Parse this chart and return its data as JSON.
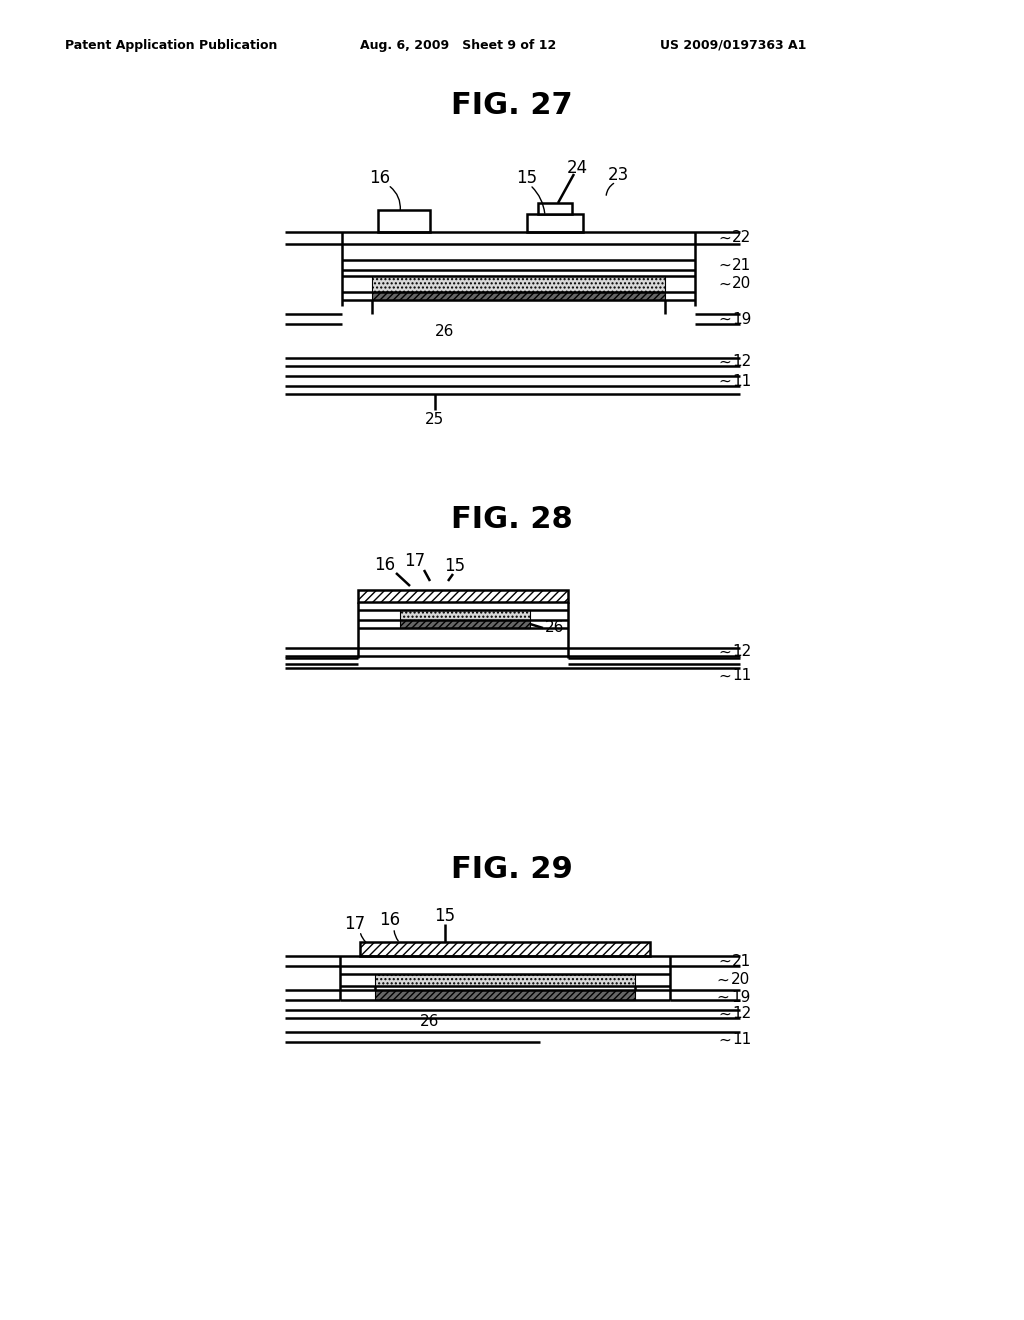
{
  "header_left": "Patent Application Publication",
  "header_mid": "Aug. 6, 2009   Sheet 9 of 12",
  "header_right": "US 2009/0197363 A1",
  "fig27_title": "FIG. 27",
  "fig28_title": "FIG. 28",
  "fig29_title": "FIG. 29",
  "bg_color": "#ffffff",
  "line_color": "#000000"
}
